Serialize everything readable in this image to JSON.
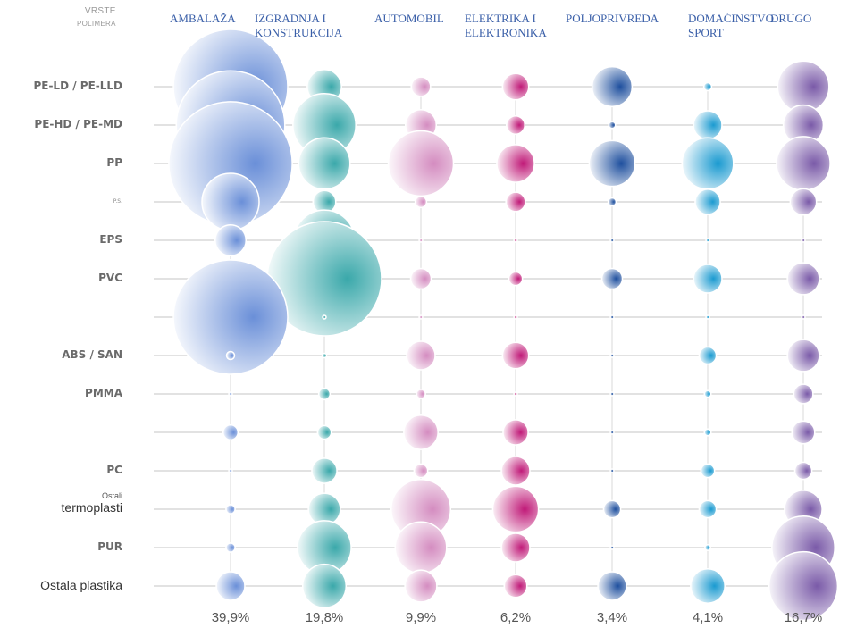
{
  "chart_data": {
    "type": "bubble-matrix",
    "axis_header": {
      "line1": "VRSTE",
      "line2": "POLIMERA"
    },
    "columns": [
      {
        "label": "AMBALAŽA",
        "share": "39,9%",
        "color": "#6a8fd8"
      },
      {
        "label": "IZGRADNJA I\nKONSTRUKCIJA",
        "share": "19,8%",
        "color": "#3aa8aa"
      },
      {
        "label": "AUTOMOBIL",
        "share": "9,9%",
        "color": "#d48cc0"
      },
      {
        "label": "ELEKTRIKA I\nELEKTRONIKA",
        "share": "6,2%",
        "color": "#c01a78"
      },
      {
        "label": "POLJOPRIVREDA",
        "share": "3,4%",
        "color": "#1e4f9e"
      },
      {
        "label": "DOMAĆINSTVO\nSPORT",
        "share": "4,1%",
        "color": "#1a9ad0"
      },
      {
        "label": "DRUGO",
        "share": "16,7%",
        "color": "#7a5aa8"
      }
    ],
    "rows": [
      {
        "label": "PE-LD / PE-LLD",
        "style": "bold"
      },
      {
        "label": "PE-HD / PE-MD",
        "style": "bold"
      },
      {
        "label": "PP",
        "style": "bold"
      },
      {
        "label": "P.S.",
        "style": "tiny"
      },
      {
        "label": "EPS",
        "style": "bold"
      },
      {
        "label": "PVC",
        "style": "bold"
      },
      {
        "label": "",
        "style": "tiny"
      },
      {
        "label": "ABS / SAN",
        "style": "bold"
      },
      {
        "label": "PMMA",
        "style": "bold"
      },
      {
        "label": "",
        "style": "tiny"
      },
      {
        "label": "PC",
        "style": "bold"
      },
      {
        "label": "termoplasti",
        "sub": "Ostali",
        "style": "plain"
      },
      {
        "label": "PUR",
        "style": "bold"
      },
      {
        "label": "Ostala plastika",
        "style": "plain"
      }
    ],
    "relative_bubble_size": [
      [
        1.0,
        0.3,
        0.17,
        0.23,
        0.35,
        0.07,
        0.45
      ],
      [
        0.95,
        0.55,
        0.27,
        0.16,
        0.06,
        0.25,
        0.35
      ],
      [
        1.08,
        0.45,
        0.57,
        0.33,
        0.4,
        0.45,
        0.47
      ],
      [
        0.5,
        0.2,
        0.1,
        0.17,
        0.07,
        0.22,
        0.23
      ],
      [
        0.27,
        0.53,
        0.03,
        0.03,
        0.03,
        0.03,
        0.03
      ],
      [
        0.33,
        1.0,
        0.18,
        0.12,
        0.18,
        0.25,
        0.28
      ],
      [
        1.0,
        0.03,
        0.03,
        0.03,
        0.03,
        0.03,
        0.03
      ],
      [
        0.07,
        0.04,
        0.25,
        0.23,
        0.03,
        0.15,
        0.28
      ],
      [
        0.03,
        0.1,
        0.08,
        0.03,
        0.03,
        0.06,
        0.17
      ],
      [
        0.13,
        0.12,
        0.3,
        0.22,
        0.03,
        0.06,
        0.2
      ],
      [
        0.03,
        0.22,
        0.12,
        0.25,
        0.03,
        0.12,
        0.15
      ],
      [
        0.08,
        0.28,
        0.52,
        0.4,
        0.15,
        0.15,
        0.33
      ],
      [
        0.08,
        0.47,
        0.45,
        0.25,
        0.03,
        0.05,
        0.55
      ],
      [
        0.25,
        0.38,
        0.28,
        0.2,
        0.25,
        0.3,
        0.6
      ]
    ]
  }
}
